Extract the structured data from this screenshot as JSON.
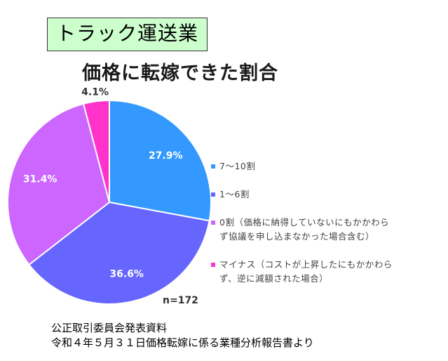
{
  "header": {
    "badge": "トラック運送業"
  },
  "chart_data": {
    "type": "pie",
    "title": "価格に転嫁できた割合",
    "start_angle_deg": 0,
    "direction": "clockwise",
    "slices": [
      {
        "label": "7～10割",
        "value": 27.9,
        "display": "27.9%",
        "color": "#3399ff"
      },
      {
        "label": "1～6割",
        "value": 36.6,
        "display": "36.6%",
        "color": "#6666ff"
      },
      {
        "label": "0割（価格に納得していないにもかかわらず協議を申し込まなかった場合含む）",
        "value": 31.4,
        "display": "31.4%",
        "color": "#cc66ff"
      },
      {
        "label": "マイナス（コストが上昇したにもかかわらず、逆に減額された場合）",
        "value": 4.1,
        "display": "4.1%",
        "color": "#ff33cc"
      }
    ],
    "n": "n=172"
  },
  "legend": {
    "items": [
      {
        "text": "7～10割",
        "color": "#3399ff"
      },
      {
        "text": "1～6割",
        "color": "#6666ff"
      },
      {
        "text_line1": "0割（価格に納得していないにもかかわら",
        "text_line2": "ず協議を申し込まなかった場合含む）",
        "color": "#cc66ff"
      },
      {
        "text_line1": "マイナス（コストが上昇したにもかかわら",
        "text_line2": "ず、逆に減額された場合）",
        "color": "#ff33cc"
      }
    ]
  },
  "footer": {
    "line1": "公正取引委員会発表資料",
    "line2": "令和４年５月３１日価格転嫁に係る業種分析報告書より"
  }
}
